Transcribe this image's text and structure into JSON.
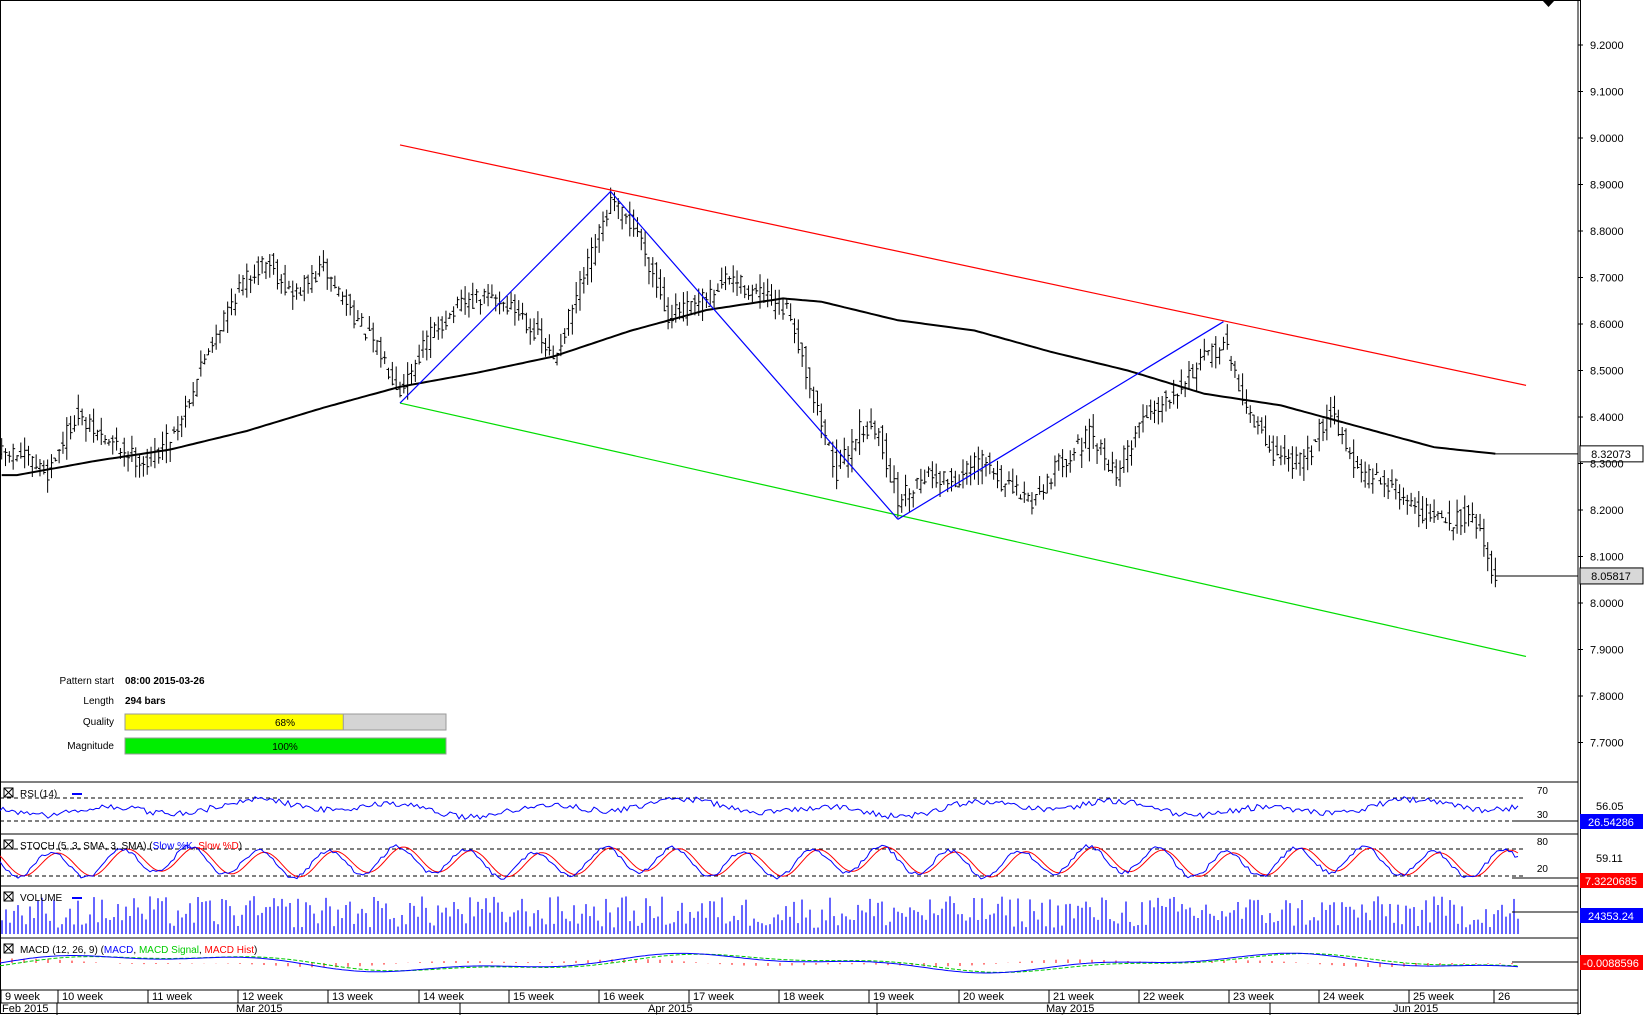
{
  "pattern_info": {
    "pattern_start_label": "Pattern start",
    "pattern_start_value": "08:00 2015-03-26",
    "length_label": "Length",
    "length_value": "294 bars",
    "quality_label": "Quality",
    "quality_value": "68%",
    "quality_fraction": 0.68,
    "magnitude_label": "Magnitude",
    "magnitude_value": "100%",
    "magnitude_fraction": 1.0
  },
  "price_panel": {
    "y_ticks": [
      "9.2000",
      "9.1000",
      "9.0000",
      "8.9000",
      "8.8000",
      "8.7000",
      "8.6000",
      "8.5000",
      "8.4000",
      "8.3000",
      "8.2000",
      "8.1000",
      "8.0000",
      "7.9000",
      "7.8000",
      "7.7000"
    ],
    "ma_value_label": "8.32073",
    "last_price_label": "8.05817"
  },
  "indicators": {
    "rsi": {
      "title": "RSI (14)",
      "level_high": "70",
      "level_low": "30",
      "mid_label": "56.05",
      "value_label": "26.54286"
    },
    "stoch": {
      "title": "STOCH (5, 3, SMA, 3, SMA) (",
      "slow_k": "Slow %K",
      "sep": ", ",
      "slow_d": "Slow %D",
      "close": ")",
      "level_high": "80",
      "level_low": "20",
      "mid_label": "59.11",
      "value_label": "7.3220685"
    },
    "volume": {
      "title": "VOLUME",
      "value_label": "24353.24"
    },
    "macd": {
      "title": "MACD (12, 26, 9) (",
      "macd": "MACD",
      "sep1": ", ",
      "signal": "MACD Signal",
      "sep2": ", ",
      "hist": "MACD Hist",
      "close": ")",
      "value_label": "-0.0088596"
    }
  },
  "x_axis": {
    "weeks": [
      "9 week",
      "10 week",
      "11 week",
      "12 week",
      "13 week",
      "14 week",
      "15 week",
      "16 week",
      "17 week",
      "18 week",
      "19 week",
      "20 week",
      "21 week",
      "22 week",
      "23 week",
      "24 week",
      "25 week",
      "26"
    ],
    "months": [
      "Feb 2015",
      "Mar 2015",
      "Apr 2015",
      "May 2015",
      "Jun 2015"
    ]
  },
  "colors": {
    "resistance": "#ff0000",
    "support": "#00dd00",
    "pattern": "#0000ff",
    "ma": "#000000",
    "quality_fill": "#ffff00",
    "magnitude_fill": "#00ee00",
    "rsi": "#0000ff",
    "stoch_k": "#0000ff",
    "stoch_d": "#ff0000",
    "volume": "#0000ff",
    "macd": "#0000ff",
    "macd_signal": "#00cc00",
    "macd_hist": "#ff0000"
  },
  "chart_data": {
    "type": "line",
    "y_range": [
      7.65,
      9.3
    ],
    "resistance_line": [
      {
        "bar": 0,
        "price": 8.985
      },
      {
        "bar": 294,
        "price": 8.468
      }
    ],
    "support_line": [
      {
        "bar": 0,
        "price": 8.43
      },
      {
        "bar": 294,
        "price": 7.885
      }
    ],
    "pattern_points": [
      {
        "bar": 0,
        "price": 8.43
      },
      {
        "bar": 55,
        "price": 8.885
      },
      {
        "bar": 130,
        "price": 8.18
      },
      {
        "bar": 215,
        "price": 8.605
      }
    ],
    "close_anchors": [
      [
        -100,
        8.32
      ],
      [
        -92,
        8.28
      ],
      [
        -85,
        8.4
      ],
      [
        -75,
        8.34
      ],
      [
        -66,
        8.3
      ],
      [
        -58,
        8.38
      ],
      [
        -50,
        8.55
      ],
      [
        -42,
        8.68
      ],
      [
        -35,
        8.74
      ],
      [
        -28,
        8.66
      ],
      [
        -20,
        8.72
      ],
      [
        -12,
        8.62
      ],
      [
        -4,
        8.52
      ],
      [
        0,
        8.46
      ],
      [
        8,
        8.58
      ],
      [
        16,
        8.64
      ],
      [
        24,
        8.66
      ],
      [
        32,
        8.62
      ],
      [
        40,
        8.52
      ],
      [
        48,
        8.7
      ],
      [
        55,
        8.86
      ],
      [
        62,
        8.8
      ],
      [
        70,
        8.62
      ],
      [
        78,
        8.64
      ],
      [
        86,
        8.7
      ],
      [
        94,
        8.66
      ],
      [
        102,
        8.62
      ],
      [
        108,
        8.44
      ],
      [
        114,
        8.28
      ],
      [
        120,
        8.38
      ],
      [
        125,
        8.36
      ],
      [
        130,
        8.22
      ],
      [
        137,
        8.28
      ],
      [
        145,
        8.26
      ],
      [
        152,
        8.31
      ],
      [
        158,
        8.25
      ],
      [
        165,
        8.22
      ],
      [
        172,
        8.3
      ],
      [
        180,
        8.36
      ],
      [
        187,
        8.28
      ],
      [
        194,
        8.4
      ],
      [
        200,
        8.44
      ],
      [
        207,
        8.5
      ],
      [
        215,
        8.56
      ],
      [
        222,
        8.4
      ],
      [
        228,
        8.32
      ],
      [
        236,
        8.3
      ],
      [
        243,
        8.42
      ],
      [
        250,
        8.28
      ],
      [
        258,
        8.26
      ],
      [
        266,
        8.2
      ],
      [
        274,
        8.17
      ],
      [
        280,
        8.2
      ],
      [
        284,
        8.1
      ],
      [
        286,
        8.058
      ]
    ],
    "ma_anchors": [
      [
        -100,
        8.275
      ],
      [
        -80,
        8.305
      ],
      [
        -60,
        8.33
      ],
      [
        -40,
        8.37
      ],
      [
        -20,
        8.42
      ],
      [
        0,
        8.465
      ],
      [
        20,
        8.495
      ],
      [
        40,
        8.53
      ],
      [
        60,
        8.585
      ],
      [
        80,
        8.63
      ],
      [
        100,
        8.655
      ],
      [
        110,
        8.648
      ],
      [
        130,
        8.608
      ],
      [
        150,
        8.586
      ],
      [
        170,
        8.54
      ],
      [
        190,
        8.5
      ],
      [
        210,
        8.45
      ],
      [
        230,
        8.425
      ],
      [
        250,
        8.38
      ],
      [
        270,
        8.335
      ],
      [
        286,
        8.321
      ]
    ],
    "series_values": {
      "ma": 8.32073,
      "last_price": 8.05817,
      "rsi": 26.54286,
      "stoch": 7.3220685,
      "volume": 24353.24,
      "macd": -0.0088596
    }
  }
}
